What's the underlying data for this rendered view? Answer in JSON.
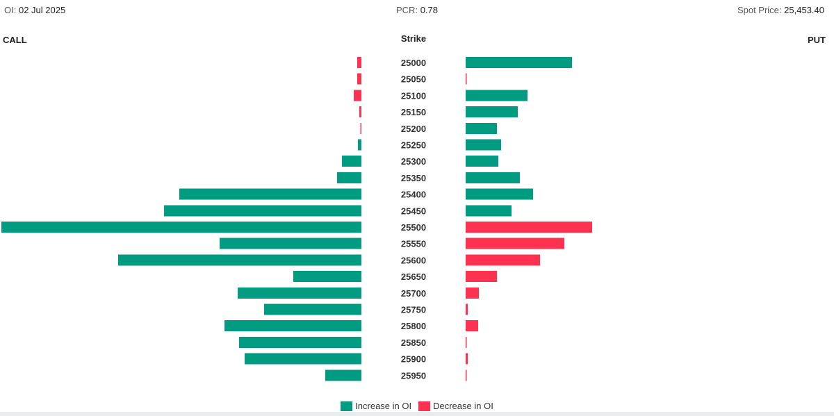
{
  "header": {
    "oi_label": "OI:",
    "oi_date": "02 Jul 2025",
    "pcr_label": "PCR:",
    "pcr_value": "0.78",
    "spot_label": "Spot Price:",
    "spot_value": "25,453.40"
  },
  "columns": {
    "call": "CALL",
    "strike": "Strike",
    "put": "PUT"
  },
  "colors": {
    "increase": "#009b81",
    "decrease": "#fd3250"
  },
  "legend": [
    {
      "label": "Increase in OI",
      "color": "increase"
    },
    {
      "label": "Decrease in OI",
      "color": "decrease"
    }
  ],
  "chart_data": {
    "type": "bar",
    "orientation": "horizontal-butterfly",
    "categories": [
      "25000",
      "25050",
      "25100",
      "25150",
      "25200",
      "25250",
      "25300",
      "25350",
      "25400",
      "25450",
      "25500",
      "25550",
      "25600",
      "25650",
      "25700",
      "25750",
      "25800",
      "25850",
      "25900",
      "25950"
    ],
    "series": [
      {
        "name": "CALL",
        "values": [
          -6,
          -6,
          -11,
          -3,
          -1,
          5,
          28,
          35,
          262,
          284,
          518,
          204,
          350,
          98,
          178,
          140,
          197,
          176,
          168,
          52
        ]
      },
      {
        "name": "PUT",
        "values": [
          153,
          -1,
          89,
          75,
          45,
          51,
          47,
          78,
          97,
          66,
          -182,
          -142,
          -107,
          -45,
          -19,
          -3,
          -18,
          -1,
          -3,
          -1
        ]
      }
    ]
  }
}
